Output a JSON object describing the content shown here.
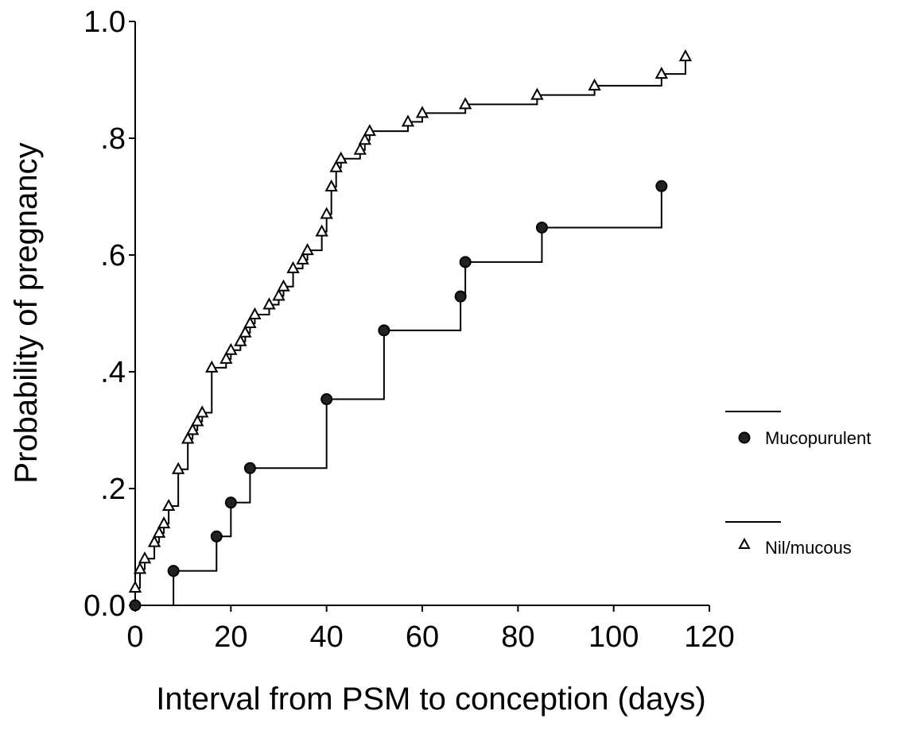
{
  "chart_data": {
    "type": "line",
    "step": true,
    "xlabel": "Interval from PSM to conception (days)",
    "ylabel": "Probability of pregnancy",
    "xlim": [
      0,
      120
    ],
    "ylim": [
      0,
      1.0
    ],
    "x_ticks": [
      {
        "value": 0,
        "label": "0"
      },
      {
        "value": 20,
        "label": "20"
      },
      {
        "value": 40,
        "label": "40"
      },
      {
        "value": 60,
        "label": "60"
      },
      {
        "value": 80,
        "label": "80"
      },
      {
        "value": 100,
        "label": "100"
      },
      {
        "value": 120,
        "label": "120"
      }
    ],
    "y_ticks": [
      {
        "value": 0.0,
        "label": "0.0"
      },
      {
        "value": 0.2,
        "label": ".2"
      },
      {
        "value": 0.4,
        "label": ".4"
      },
      {
        "value": 0.6,
        "label": ".6"
      },
      {
        "value": 0.8,
        "label": ".8"
      },
      {
        "value": 1.0,
        "label": "1.0"
      }
    ],
    "grid": false,
    "legend_position": "right",
    "series": [
      {
        "name": "Mucopurulent",
        "marker": "filled-circle",
        "color": "#000000",
        "points": [
          {
            "x": 0,
            "y": 0.0
          },
          {
            "x": 8,
            "y": 0.059
          },
          {
            "x": 17,
            "y": 0.118
          },
          {
            "x": 20,
            "y": 0.176
          },
          {
            "x": 24,
            "y": 0.235
          },
          {
            "x": 40,
            "y": 0.353
          },
          {
            "x": 52,
            "y": 0.471
          },
          {
            "x": 68,
            "y": 0.529
          },
          {
            "x": 69,
            "y": 0.588
          },
          {
            "x": 85,
            "y": 0.647
          },
          {
            "x": 110,
            "y": 0.718
          }
        ]
      },
      {
        "name": "Nil/mucous",
        "marker": "open-triangle",
        "color": "#000000",
        "points": [
          {
            "x": 0,
            "y": 0.03
          },
          {
            "x": 1,
            "y": 0.062
          },
          {
            "x": 2,
            "y": 0.08
          },
          {
            "x": 4,
            "y": 0.108
          },
          {
            "x": 5,
            "y": 0.124
          },
          {
            "x": 6,
            "y": 0.14
          },
          {
            "x": 7,
            "y": 0.17
          },
          {
            "x": 9,
            "y": 0.233
          },
          {
            "x": 11,
            "y": 0.285
          },
          {
            "x": 12,
            "y": 0.3
          },
          {
            "x": 13,
            "y": 0.315
          },
          {
            "x": 14,
            "y": 0.33
          },
          {
            "x": 16,
            "y": 0.407
          },
          {
            "x": 19,
            "y": 0.422
          },
          {
            "x": 20,
            "y": 0.437
          },
          {
            "x": 22,
            "y": 0.452
          },
          {
            "x": 23,
            "y": 0.467
          },
          {
            "x": 24,
            "y": 0.483
          },
          {
            "x": 25,
            "y": 0.498
          },
          {
            "x": 28,
            "y": 0.515
          },
          {
            "x": 30,
            "y": 0.53
          },
          {
            "x": 31,
            "y": 0.546
          },
          {
            "x": 33,
            "y": 0.577
          },
          {
            "x": 35,
            "y": 0.592
          },
          {
            "x": 36,
            "y": 0.608
          },
          {
            "x": 39,
            "y": 0.64
          },
          {
            "x": 40,
            "y": 0.67
          },
          {
            "x": 41,
            "y": 0.717
          },
          {
            "x": 42,
            "y": 0.75
          },
          {
            "x": 43,
            "y": 0.765
          },
          {
            "x": 47,
            "y": 0.78
          },
          {
            "x": 48,
            "y": 0.797
          },
          {
            "x": 49,
            "y": 0.812
          },
          {
            "x": 57,
            "y": 0.828
          },
          {
            "x": 60,
            "y": 0.843
          },
          {
            "x": 69,
            "y": 0.858
          },
          {
            "x": 84,
            "y": 0.874
          },
          {
            "x": 96,
            "y": 0.89
          },
          {
            "x": 110,
            "y": 0.91
          },
          {
            "x": 115,
            "y": 0.94
          }
        ]
      }
    ]
  }
}
